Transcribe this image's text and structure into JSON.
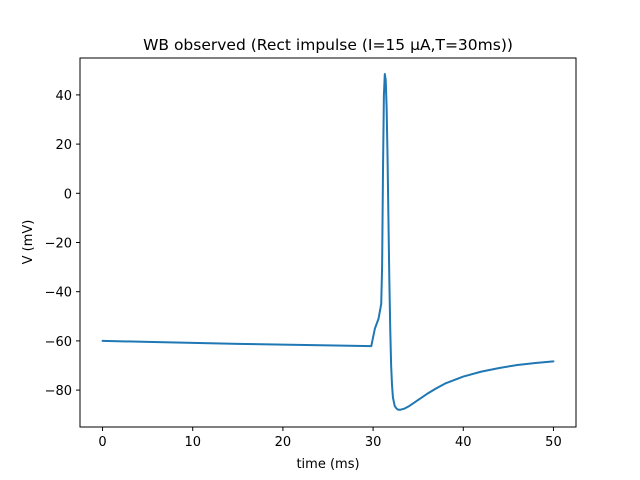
{
  "chart_data": {
    "type": "line",
    "title": "WB observed (Rect impulse (I=15 µA,T=30ms))",
    "xlabel": "time (ms)",
    "ylabel": "V (mV)",
    "xlim": [
      -2.5,
      52.5
    ],
    "ylim": [
      -95,
      55
    ],
    "xticks": [
      0,
      10,
      20,
      30,
      40,
      50
    ],
    "yticks": [
      -80,
      -60,
      -40,
      -20,
      0,
      20,
      40
    ],
    "grid": false,
    "series": [
      {
        "color": "#1f77b4",
        "x": [
          0,
          5,
          10,
          15,
          20,
          25,
          29.8,
          30.2,
          30.6,
          30.9,
          31.0,
          31.1,
          31.2,
          31.3,
          31.4,
          31.5,
          31.6,
          31.7,
          31.8,
          31.9,
          32.0,
          32.1,
          32.2,
          32.4,
          32.6,
          32.8,
          33.0,
          33.5,
          34.0,
          35.0,
          36.0,
          37.0,
          38.0,
          40.0,
          42.0,
          44.0,
          46.0,
          48.0,
          50.0
        ],
        "y": [
          -60,
          -60.4,
          -60.8,
          -61.2,
          -61.5,
          -61.8,
          -62.1,
          -55,
          -51,
          -45,
          -30,
          10,
          40,
          48.5,
          46,
          35,
          15,
          -10,
          -35,
          -55,
          -70,
          -78,
          -83,
          -86.5,
          -87.5,
          -88,
          -88,
          -87.5,
          -86.5,
          -84,
          -81.5,
          -79.3,
          -77.3,
          -74.5,
          -72.5,
          -71,
          -69.8,
          -69,
          -68.3
        ]
      }
    ]
  }
}
